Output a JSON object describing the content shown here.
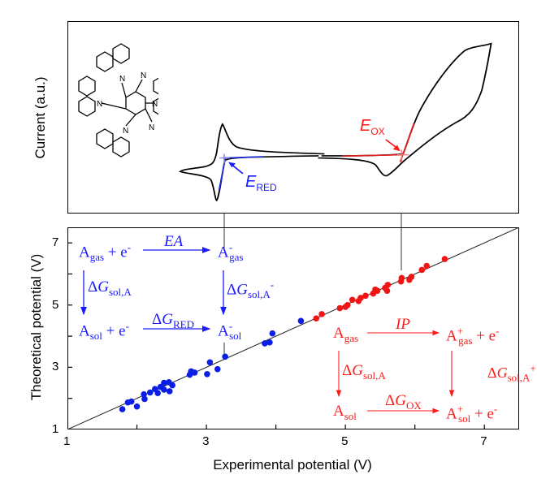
{
  "top_panel": {
    "ylabel": "Current (a.u.)",
    "e_ox": {
      "symbol": "E",
      "sub": "OX"
    },
    "e_red": {
      "symbol": "E",
      "sub": "RED"
    }
  },
  "chart_data": {
    "type": "scatter",
    "xlabel": "Experimental potential (V)",
    "ylabel": "Theoretical potential (V)",
    "xlim": [
      1,
      7.5
    ],
    "ylim": [
      1,
      7.5
    ],
    "xticks": [
      "1",
      "3",
      "5",
      "7"
    ],
    "yticks": [
      "1",
      "3",
      "5",
      "7"
    ],
    "reference_line": "y = x",
    "series": [
      {
        "color": "#0a1ee6",
        "points": [
          [
            1.79,
            1.65
          ],
          [
            1.87,
            1.87
          ],
          [
            1.92,
            1.9
          ],
          [
            2.0,
            1.74
          ],
          [
            2.1,
            2.13
          ],
          [
            2.11,
            1.98
          ],
          [
            2.19,
            2.19
          ],
          [
            2.26,
            2.3
          ],
          [
            2.3,
            2.17
          ],
          [
            2.34,
            2.37
          ],
          [
            2.39,
            2.5
          ],
          [
            2.39,
            2.28
          ],
          [
            2.46,
            2.52
          ],
          [
            2.47,
            2.23
          ],
          [
            2.51,
            2.42
          ],
          [
            2.76,
            2.76
          ],
          [
            2.78,
            2.87
          ],
          [
            2.83,
            2.83
          ],
          [
            3.01,
            2.78
          ],
          [
            3.05,
            3.16
          ],
          [
            3.16,
            2.94
          ],
          [
            3.27,
            3.34
          ],
          [
            3.84,
            3.77
          ],
          [
            3.91,
            3.8
          ],
          [
            3.95,
            4.09
          ],
          [
            4.36,
            4.49
          ]
        ]
      },
      {
        "color": "#f01414",
        "points": [
          [
            4.58,
            4.57
          ],
          [
            4.66,
            4.71
          ],
          [
            4.92,
            4.9
          ],
          [
            5.0,
            4.94
          ],
          [
            5.03,
            5.0
          ],
          [
            5.1,
            5.17
          ],
          [
            5.19,
            5.13
          ],
          [
            5.22,
            5.23
          ],
          [
            5.29,
            5.3
          ],
          [
            5.4,
            5.37
          ],
          [
            5.43,
            5.5
          ],
          [
            5.46,
            5.46
          ],
          [
            5.57,
            5.55
          ],
          [
            5.61,
            5.65
          ],
          [
            5.6,
            5.46
          ],
          [
            5.8,
            5.76
          ],
          [
            5.81,
            5.87
          ],
          [
            5.92,
            5.81
          ],
          [
            5.95,
            5.91
          ],
          [
            6.1,
            6.13
          ],
          [
            6.17,
            6.26
          ],
          [
            6.43,
            6.48
          ]
        ]
      }
    ]
  },
  "scheme_red": {
    "a_gas_e": {
      "A": "A",
      "sub": "gas",
      "plus": " + e",
      "sup": "-"
    },
    "ea": "EA",
    "a_minus_gas": {
      "A": "A",
      "sup": "-",
      "sub": "gas"
    },
    "dg_sol_a": {
      "d": "ΔG",
      "sub": "sol,A"
    },
    "dg_sol_a_minus": {
      "d": "ΔG",
      "sub": "sol,A",
      "sup": "-"
    },
    "a_sol_e": {
      "A": "A",
      "sub": "sol",
      "plus": " + e",
      "sup": "-"
    },
    "dg_red": {
      "d": "ΔG",
      "sub": "RED"
    },
    "a_minus_sol": {
      "A": "A",
      "sup": "-",
      "sub": "sol"
    }
  },
  "scheme_ox": {
    "a_gas": {
      "A": "A",
      "sub": "gas"
    },
    "ip": "IP",
    "a_plus_gas_e": {
      "A": "A",
      "sup": "+",
      "sub": "gas",
      "plus": " + e",
      "sup2": "-"
    },
    "dg_sol_a": {
      "d": "ΔG",
      "sub": "sol,A"
    },
    "dg_sol_a_plus": {
      "d": "ΔG",
      "sub": "sol,A",
      "sup": "+"
    },
    "a_sol": {
      "A": "A",
      "sub": "sol"
    },
    "dg_ox": {
      "d": "ΔG",
      "sub": "OX"
    },
    "a_plus_sol_e": {
      "A": "A",
      "sup": "+",
      "sub": "sol",
      "plus": " + e",
      "sup2": "-"
    }
  }
}
